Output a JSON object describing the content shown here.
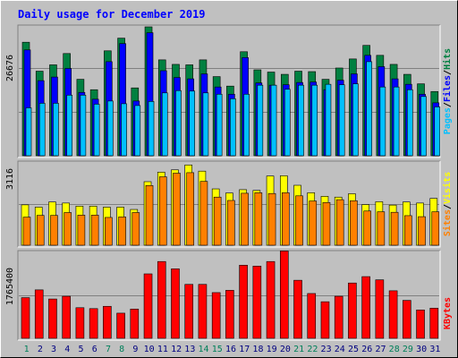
{
  "chart_data": [
    {
      "type": "bar",
      "title": "Daily usage for December 2019",
      "categories": [
        "1",
        "2",
        "3",
        "4",
        "5",
        "6",
        "7",
        "8",
        "9",
        "10",
        "11",
        "12",
        "13",
        "14",
        "15",
        "16",
        "17",
        "18",
        "19",
        "20",
        "21",
        "22",
        "23",
        "24",
        "25",
        "26",
        "27",
        "28",
        "29",
        "30",
        "31"
      ],
      "weekend_days": [
        "1",
        "7",
        "8",
        "14",
        "15",
        "21",
        "22",
        "28",
        "29"
      ],
      "y_tick_label": "26676",
      "ylabel": [
        "Pages",
        "Files",
        "Hits"
      ],
      "ylim": [
        0,
        28500
      ],
      "series": [
        {
          "name": "Hits",
          "color": "#008040",
          "values": [
            25100,
            18700,
            20100,
            22600,
            16900,
            14600,
            23200,
            26000,
            15000,
            28500,
            21200,
            20200,
            20100,
            21200,
            17500,
            15400,
            23000,
            19000,
            18500,
            18000,
            18700,
            18600,
            16900,
            19400,
            21400,
            24400,
            22200,
            20200,
            18000,
            15900,
            14200
          ]
        },
        {
          "name": "Files",
          "color": "#0000ff",
          "values": [
            23400,
            16600,
            17400,
            19300,
            14000,
            12500,
            20800,
            24800,
            12100,
            27200,
            18800,
            17300,
            17000,
            18100,
            15200,
            13600,
            21700,
            16100,
            15600,
            15700,
            16200,
            16300,
            14600,
            16700,
            18100,
            22200,
            19700,
            17000,
            15800,
            13600,
            11700
          ]
        },
        {
          "name": "Pages",
          "color": "#00c0ff",
          "values": [
            10600,
            11600,
            11600,
            13400,
            13400,
            11400,
            12100,
            11500,
            11100,
            12000,
            13900,
            14400,
            14300,
            13900,
            13600,
            12600,
            13600,
            15600,
            15600,
            14700,
            15600,
            15600,
            15800,
            15700,
            15900,
            20800,
            15200,
            15200,
            14600,
            13100,
            10800
          ]
        }
      ]
    },
    {
      "type": "bar",
      "y_tick_label": "3116",
      "ylabel": [
        "Sites",
        "Visits"
      ],
      "ylim": [
        0,
        3200
      ],
      "series": [
        {
          "name": "Visits",
          "color": "#ffff00",
          "values": [
            1570,
            1480,
            1680,
            1640,
            1520,
            1520,
            1480,
            1480,
            1390,
            2470,
            2840,
            2930,
            3120,
            2880,
            2190,
            2030,
            2160,
            2130,
            2690,
            2700,
            2330,
            2040,
            1900,
            1870,
            2000,
            1580,
            1690,
            1560,
            1680,
            1640,
            1820
          ]
        },
        {
          "name": "Sites",
          "color": "#ff8000",
          "values": [
            1090,
            1160,
            1160,
            1270,
            1170,
            1170,
            1080,
            1100,
            1270,
            2320,
            2660,
            2800,
            2820,
            2480,
            1870,
            1740,
            2020,
            2040,
            2010,
            2040,
            1920,
            1720,
            1660,
            1770,
            1730,
            1330,
            1300,
            1280,
            1150,
            1110,
            1300
          ]
        }
      ]
    },
    {
      "type": "bar",
      "y_tick_label": "1765400",
      "ylabel": [
        "KBytes"
      ],
      "ylim": [
        0,
        1880000
      ],
      "series": [
        {
          "name": "KBytes",
          "color": "#ff0000",
          "values": [
            890000,
            1060000,
            860000,
            920000,
            670000,
            650000,
            700000,
            550000,
            640000,
            1410000,
            1680000,
            1520000,
            1180000,
            1180000,
            1000000,
            1050000,
            1600000,
            1580000,
            1680000,
            1910000,
            1270000,
            980000,
            800000,
            920000,
            1210000,
            1350000,
            1280000,
            1040000,
            830000,
            620000,
            660000
          ]
        }
      ]
    }
  ]
}
